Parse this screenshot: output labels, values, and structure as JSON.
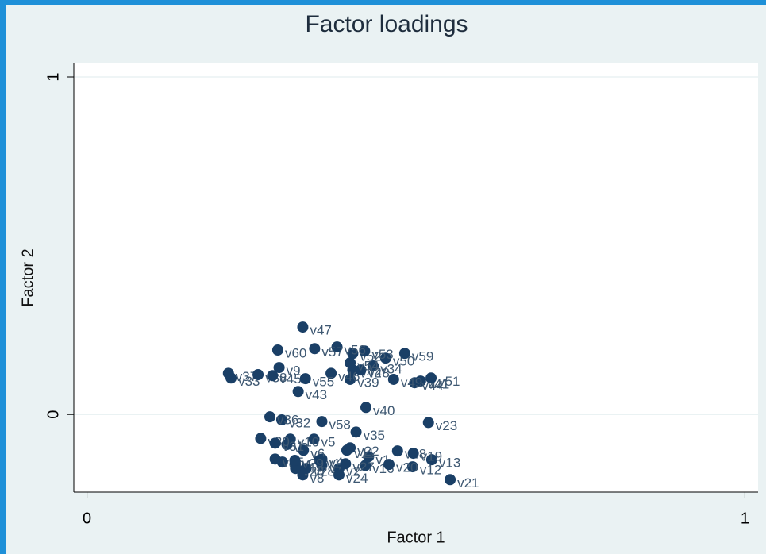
{
  "chart_data": {
    "type": "scatter",
    "title": "Factor loadings",
    "xlabel": "Factor 1",
    "ylabel": "Factor 2",
    "xlim": [
      -0.02,
      1.02
    ],
    "ylim": [
      -0.23,
      1.04
    ],
    "xticks": [
      0,
      1
    ],
    "yticks": [
      0,
      1
    ],
    "grid": true,
    "color": "#1a3f66",
    "series": [
      {
        "name": "loadings",
        "color": "#1a3f66",
        "labels": [
          "v1",
          "v2",
          "v3",
          "v4",
          "v5",
          "v6",
          "v7",
          "v8",
          "v9",
          "v10",
          "v11",
          "v12",
          "v13",
          "v14",
          "v15",
          "v16",
          "v17",
          "v18",
          "v19",
          "v20",
          "v21",
          "v22",
          "v23",
          "v24",
          "v25",
          "v26",
          "v27",
          "v28",
          "v29",
          "v30",
          "v31",
          "v32",
          "v33",
          "v34",
          "v35",
          "v36",
          "v37",
          "v38",
          "v39",
          "v40",
          "v41",
          "v42",
          "v43",
          "v44",
          "v45",
          "v46",
          "v47",
          "v48",
          "v49",
          "v50",
          "v51",
          "v52",
          "v53",
          "v54",
          "v55",
          "v56",
          "v57",
          "v58",
          "v59",
          "v60"
        ],
        "x": [
          0.428,
          0.383,
          0.304,
          0.357,
          0.345,
          0.329,
          0.357,
          0.328,
          0.292,
          0.309,
          0.395,
          0.495,
          0.524,
          0.297,
          0.316,
          0.423,
          0.353,
          0.472,
          0.496,
          0.459,
          0.552,
          0.4,
          0.519,
          0.383,
          0.286,
          0.317,
          0.393,
          0.333,
          0.316,
          0.264,
          0.286,
          0.296,
          0.219,
          0.435,
          0.409,
          0.278,
          0.215,
          0.26,
          0.4,
          0.424,
          0.507,
          0.404,
          0.321,
          0.498,
          0.282,
          0.371,
          0.328,
          0.416,
          0.466,
          0.454,
          0.523,
          0.404,
          0.422,
          0.4,
          0.332,
          0.38,
          0.346,
          0.357,
          0.483,
          0.29
        ],
        "values": [
          -0.125,
          -0.16,
          -0.089,
          -0.132,
          -0.073,
          -0.106,
          -0.151,
          -0.179,
          0.139,
          -0.073,
          -0.106,
          -0.155,
          -0.134,
          -0.141,
          -0.148,
          -0.151,
          -0.136,
          -0.108,
          -0.115,
          -0.148,
          -0.193,
          -0.099,
          -0.024,
          -0.179,
          -0.132,
          -0.16,
          -0.146,
          -0.16,
          -0.136,
          -0.071,
          -0.085,
          -0.016,
          0.108,
          0.144,
          -0.052,
          -0.007,
          0.122,
          0.118,
          0.104,
          0.021,
          0.099,
          0.132,
          0.068,
          0.094,
          0.115,
          0.122,
          0.259,
          0.132,
          0.104,
          0.167,
          0.108,
          0.181,
          0.188,
          0.153,
          0.106,
          0.2,
          0.195,
          -0.021,
          0.181,
          0.191
        ]
      }
    ]
  }
}
